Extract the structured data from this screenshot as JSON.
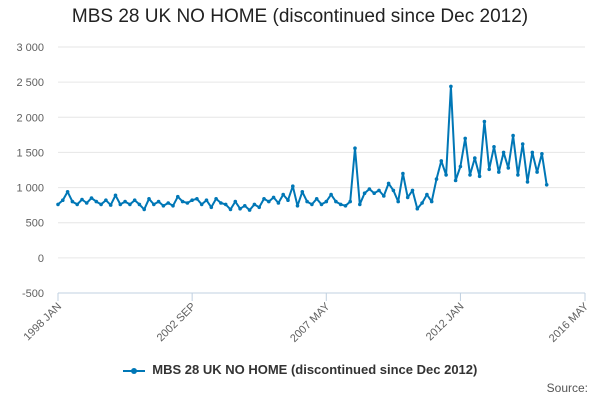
{
  "chart_data": {
    "type": "line",
    "title": "MBS 28 UK NO HOME (discontinued since Dec 2012)",
    "xlabel": "",
    "ylabel": "",
    "x_range": [
      "1998 JAN",
      "2016 MAY"
    ],
    "ylim": [
      -500,
      3000
    ],
    "y_ticks": [
      -500,
      0,
      500,
      1000,
      1500,
      2000,
      2500,
      3000
    ],
    "y_tick_labels": [
      "-500",
      "0",
      "500",
      "1 000",
      "1 500",
      "2 000",
      "2 500",
      "3 000"
    ],
    "x_ticks": [
      {
        "date": "1998-01",
        "label": "1998 JAN"
      },
      {
        "date": "2002-09",
        "label": "2002 SEP"
      },
      {
        "date": "2007-05",
        "label": "2007 MAY"
      },
      {
        "date": "2012-01",
        "label": "2012 JAN"
      },
      {
        "date": "2016-05",
        "label": "2016 MAY"
      }
    ],
    "grid": "horizontal",
    "legend_position": "bottom",
    "color": "#0077b6",
    "series": [
      {
        "name": "MBS 28 UK NO HOME (discontinued since Dec 2012)",
        "points": [
          [
            "1998-01",
            760
          ],
          [
            "1998-03",
            820
          ],
          [
            "1998-05",
            940
          ],
          [
            "1998-07",
            800
          ],
          [
            "1998-09",
            760
          ],
          [
            "1998-11",
            830
          ],
          [
            "1999-01",
            780
          ],
          [
            "1999-03",
            850
          ],
          [
            "1999-05",
            800
          ],
          [
            "1999-07",
            760
          ],
          [
            "1999-09",
            820
          ],
          [
            "1999-11",
            750
          ],
          [
            "2000-01",
            890
          ],
          [
            "2000-03",
            760
          ],
          [
            "2000-05",
            800
          ],
          [
            "2000-07",
            760
          ],
          [
            "2000-09",
            820
          ],
          [
            "2000-11",
            760
          ],
          [
            "2001-01",
            690
          ],
          [
            "2001-03",
            840
          ],
          [
            "2001-05",
            760
          ],
          [
            "2001-07",
            800
          ],
          [
            "2001-09",
            740
          ],
          [
            "2001-11",
            780
          ],
          [
            "2002-01",
            740
          ],
          [
            "2002-03",
            870
          ],
          [
            "2002-05",
            800
          ],
          [
            "2002-07",
            780
          ],
          [
            "2002-09",
            820
          ],
          [
            "2002-11",
            840
          ],
          [
            "2003-01",
            760
          ],
          [
            "2003-03",
            820
          ],
          [
            "2003-05",
            720
          ],
          [
            "2003-07",
            840
          ],
          [
            "2003-09",
            780
          ],
          [
            "2003-11",
            760
          ],
          [
            "2004-01",
            690
          ],
          [
            "2004-03",
            800
          ],
          [
            "2004-05",
            700
          ],
          [
            "2004-07",
            740
          ],
          [
            "2004-09",
            680
          ],
          [
            "2004-11",
            760
          ],
          [
            "2005-01",
            720
          ],
          [
            "2005-03",
            840
          ],
          [
            "2005-05",
            800
          ],
          [
            "2005-07",
            860
          ],
          [
            "2005-09",
            780
          ],
          [
            "2005-11",
            900
          ],
          [
            "2006-01",
            820
          ],
          [
            "2006-03",
            1020
          ],
          [
            "2006-05",
            740
          ],
          [
            "2006-07",
            940
          ],
          [
            "2006-09",
            800
          ],
          [
            "2006-11",
            760
          ],
          [
            "2007-01",
            840
          ],
          [
            "2007-03",
            760
          ],
          [
            "2007-05",
            800
          ],
          [
            "2007-07",
            900
          ],
          [
            "2007-09",
            800
          ],
          [
            "2007-11",
            760
          ],
          [
            "2008-01",
            740
          ],
          [
            "2008-03",
            800
          ],
          [
            "2008-05",
            1560
          ],
          [
            "2008-07",
            760
          ],
          [
            "2008-09",
            920
          ],
          [
            "2008-11",
            980
          ],
          [
            "2009-01",
            920
          ],
          [
            "2009-03",
            960
          ],
          [
            "2009-05",
            880
          ],
          [
            "2009-07",
            1060
          ],
          [
            "2009-09",
            960
          ],
          [
            "2009-11",
            800
          ],
          [
            "2010-01",
            1200
          ],
          [
            "2010-03",
            860
          ],
          [
            "2010-05",
            960
          ],
          [
            "2010-07",
            700
          ],
          [
            "2010-09",
            780
          ],
          [
            "2010-11",
            900
          ],
          [
            "2011-01",
            800
          ],
          [
            "2011-03",
            1120
          ],
          [
            "2011-05",
            1380
          ],
          [
            "2011-07",
            1180
          ],
          [
            "2011-09",
            2440
          ],
          [
            "2011-11",
            1100
          ],
          [
            "2012-01",
            1300
          ],
          [
            "2012-03",
            1700
          ],
          [
            "2012-05",
            1180
          ],
          [
            "2012-07",
            1420
          ],
          [
            "2012-09",
            1160
          ],
          [
            "2012-11",
            1940
          ],
          [
            "2013-01",
            1260
          ],
          [
            "2013-03",
            1580
          ],
          [
            "2013-05",
            1220
          ],
          [
            "2013-07",
            1500
          ],
          [
            "2013-09",
            1280
          ],
          [
            "2013-11",
            1740
          ],
          [
            "2014-01",
            1180
          ],
          [
            "2014-03",
            1620
          ],
          [
            "2014-05",
            1080
          ],
          [
            "2014-07",
            1500
          ],
          [
            "2014-09",
            1220
          ],
          [
            "2014-11",
            1480
          ],
          [
            "2015-01",
            1040
          ]
        ]
      }
    ]
  },
  "source_label": "Source:"
}
